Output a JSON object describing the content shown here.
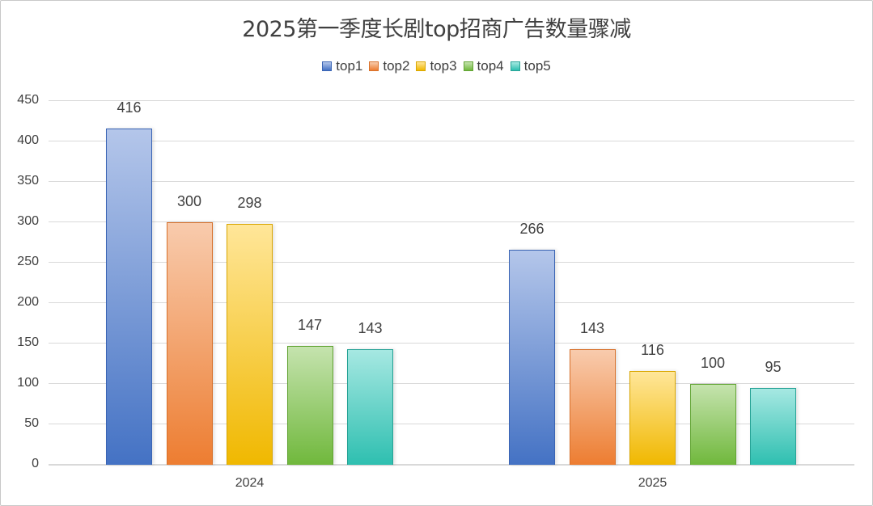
{
  "chart_data": {
    "type": "bar",
    "title": "2025第一季度长剧top招商广告数量骤减",
    "categories": [
      "2024",
      "2025"
    ],
    "series": [
      {
        "name": "top1",
        "values": [
          416,
          266
        ],
        "color": "#4472C4",
        "light": "#B4C6EA",
        "border": "#3A64B4"
      },
      {
        "name": "top2",
        "values": [
          300,
          143
        ],
        "color": "#ED7D31",
        "light": "#F8CBAD",
        "border": "#D8702A"
      },
      {
        "name": "top3",
        "values": [
          298,
          116
        ],
        "color": "#F0B800",
        "light": "#FFE699",
        "border": "#D9A600"
      },
      {
        "name": "top4",
        "values": [
          147,
          100
        ],
        "color": "#70B83C",
        "light": "#C5E3AE",
        "border": "#62A434"
      },
      {
        "name": "top5",
        "values": [
          143,
          95
        ],
        "color": "#2EBFB0",
        "light": "#A6E8E2",
        "border": "#27A396"
      }
    ],
    "xlabel": "",
    "ylabel": "",
    "ylim": [
      0,
      450
    ],
    "yticks": [
      0,
      50,
      100,
      150,
      200,
      250,
      300,
      350,
      400,
      450
    ],
    "grid": true,
    "legend_position": "top",
    "data_labels": true
  }
}
